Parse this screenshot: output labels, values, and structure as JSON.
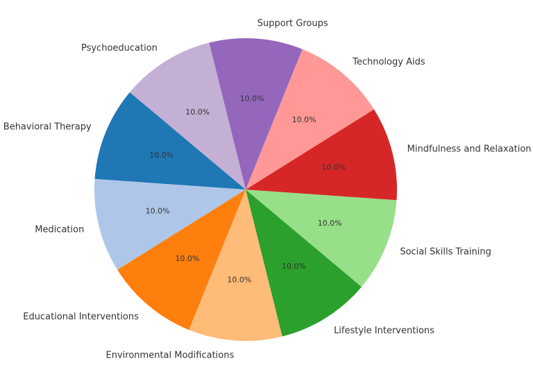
{
  "chart_data": {
    "type": "pie",
    "categories": [
      "Behavioral Therapy",
      "Medication",
      "Educational Interventions",
      "Environmental Modifications",
      "Lifestyle Interventions",
      "Social Skills Training",
      "Mindfulness and Relaxation",
      "Technology Aids",
      "Support Groups",
      "Psychoeducation"
    ],
    "values": [
      10,
      10,
      10,
      10,
      10,
      10,
      10,
      10,
      10,
      10
    ],
    "value_labels": [
      "10.0%",
      "10.0%",
      "10.0%",
      "10.0%",
      "10.0%",
      "10.0%",
      "10.0%",
      "10.0%",
      "10.0%",
      "10.0%"
    ],
    "colors": [
      "#1f77b4",
      "#aec7e8",
      "#ff7f0e",
      "#ffbb78",
      "#2ca02c",
      "#98df8a",
      "#d62728",
      "#ff9896",
      "#9467bd",
      "#c5b0d5"
    ],
    "startangle": 140
  }
}
